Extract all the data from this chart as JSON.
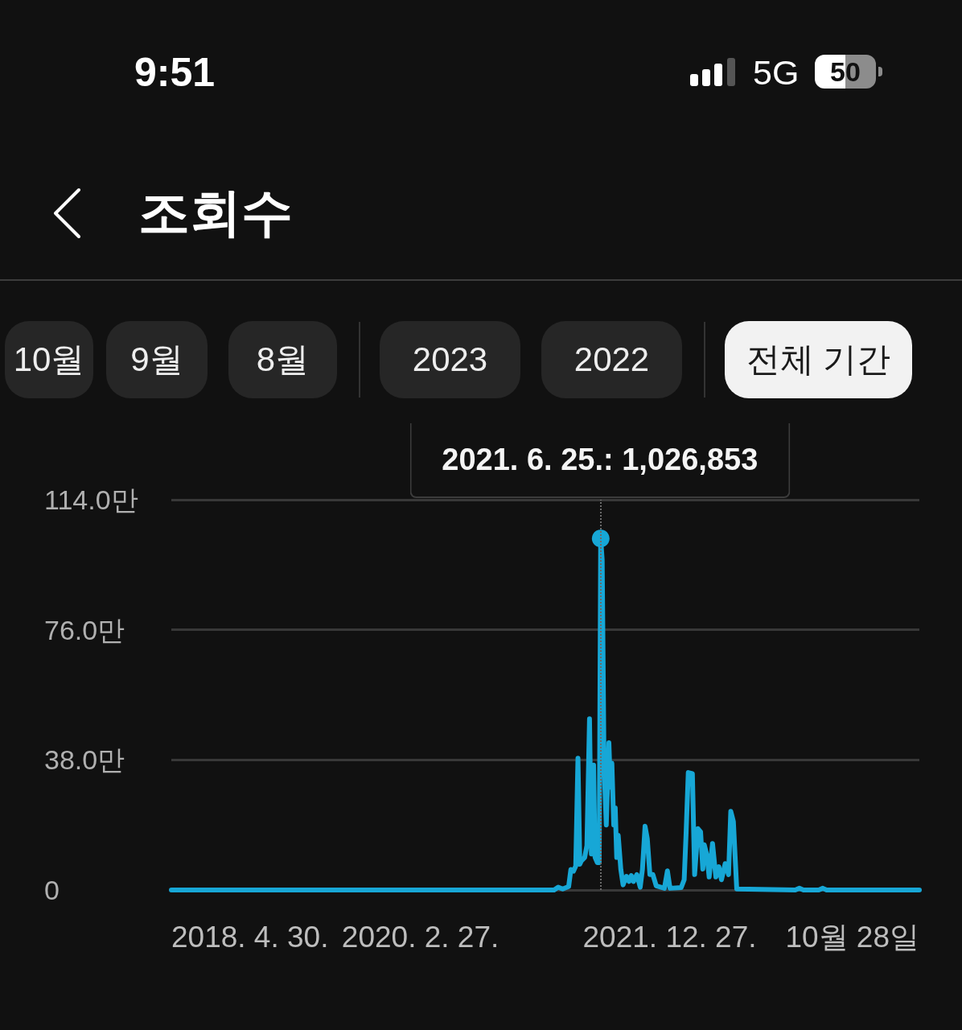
{
  "chart_data": {
    "type": "line",
    "title": "조회수",
    "annotations": [
      "9:51",
      "5G",
      "50",
      "10월",
      "9월",
      "8월",
      "2023",
      "2022",
      "전체 기간",
      {
        "text": "2021. 6. 25.: 1,026,853",
        "x": "2021-06-25",
        "y": 102.6853
      }
    ],
    "x": [
      "2018-04-30",
      "2021-02-20",
      "2021-03-03",
      "2021-03-15",
      "2021-03-31",
      "2021-04-06",
      "2021-04-13",
      "2021-04-19",
      "2021-04-25",
      "2021-04-30",
      "2021-05-04",
      "2021-05-13",
      "2021-05-19",
      "2021-05-26",
      "2021-05-31",
      "2021-06-06",
      "2021-06-10",
      "2021-06-16",
      "2021-06-21",
      "2021-06-25",
      "2021-06-29",
      "2021-07-04",
      "2021-07-10",
      "2021-07-17",
      "2021-07-21",
      "2021-07-25",
      "2021-07-30",
      "2021-08-03",
      "2021-08-07",
      "2021-08-11",
      "2021-08-18",
      "2021-08-24",
      "2021-09-02",
      "2021-09-09",
      "2021-09-15",
      "2021-09-21",
      "2021-09-30",
      "2021-10-09",
      "2021-10-15",
      "2021-10-22",
      "2021-10-28",
      "2021-11-04",
      "2021-11-12",
      "2021-11-21",
      "2021-12-13",
      "2021-12-21",
      "2021-12-28",
      "2022-01-27",
      "2022-02-04",
      "2022-02-09",
      "2022-02-15",
      "2022-02-26",
      "2022-03-04",
      "2022-03-13",
      "2022-03-20",
      "2022-03-26",
      "2022-03-30",
      "2022-04-06",
      "2022-04-12",
      "2022-04-21",
      "2022-04-30",
      "2022-05-08",
      "2022-05-15",
      "2022-05-25",
      "2022-06-03",
      "2022-06-09",
      "2022-06-16",
      "2022-06-25",
      "2022-11-29",
      "2022-12-10",
      "2022-12-21",
      "2023-01-31",
      "2023-02-11",
      "2023-02-21",
      "2023-10-28"
    ],
    "values": [
      0,
      0,
      0.8,
      0.3,
      1,
      6,
      5.5,
      7,
      38.5,
      7.5,
      8.5,
      9.5,
      13,
      50,
      10.5,
      36.5,
      9.5,
      8,
      8,
      102.6853,
      96.5,
      36,
      19,
      43,
      30,
      37,
      19,
      24,
      9.5,
      16,
      6,
      1.5,
      4,
      2.5,
      4.2,
      2.5,
      4.5,
      0.8,
      6,
      18.6,
      15,
      4.5,
      4.5,
      1.2,
      0.5,
      5.6,
      0.5,
      0.7,
      3,
      16.2,
      34.3,
      34,
      4.5,
      17.9,
      17,
      6.1,
      13.2,
      10.1,
      3.8,
      13.6,
      3.8,
      6.8,
      3,
      7.7,
      4.5,
      23,
      20,
      0.3,
      0,
      0.5,
      0,
      0,
      0.5,
      0,
      0
    ],
    "color": "#17a7d6",
    "xlim": [
      "2018-04-30",
      "2023-10-28"
    ],
    "xticks": [
      {
        "value": "2018-04-30",
        "label": "2018. 4. 30."
      },
      {
        "value": "2020-02-27",
        "label": "2020. 2. 27."
      },
      {
        "value": "2021-12-27",
        "label": "2021. 12. 27."
      },
      {
        "value": "2023-10-28",
        "label": "10월 28일"
      }
    ],
    "ylim": [
      0,
      114
    ],
    "yticks": [
      0,
      {
        "value": 38,
        "label": "38.0만"
      },
      {
        "value": 76,
        "label": "76.0만"
      },
      {
        "value": 114,
        "label": "114.0만"
      }
    ],
    "ref_lines": [
      {
        "axis": "x",
        "value": "2021-06-25",
        "line_style": "dotted",
        "color": "#6a6a6a"
      }
    ],
    "grid": "y",
    "marker": "none",
    "line_style": "solid"
  }
}
